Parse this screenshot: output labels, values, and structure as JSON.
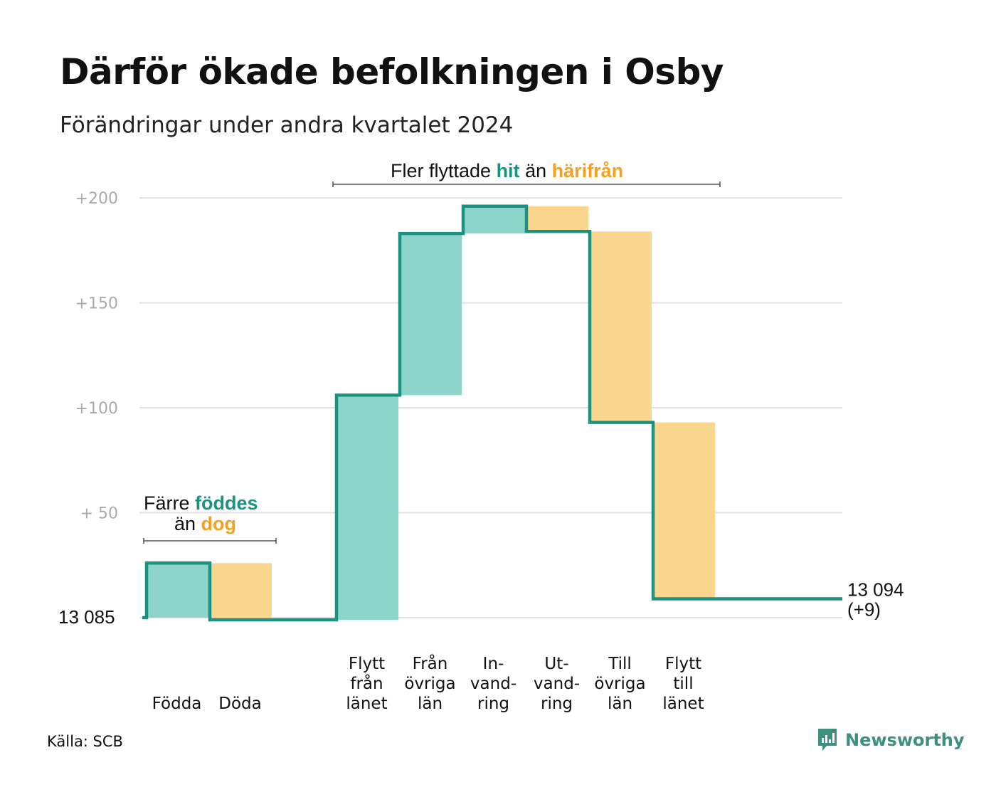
{
  "title": "Därför ökade befolkningen i Osby",
  "subtitle": "Förändringar under andra kvartalet 2024",
  "source": "Källa: SCB",
  "brand": {
    "name": "Newsworthy",
    "icon": "newsworthy-logo-icon"
  },
  "colors": {
    "inflow": "#8dd4cb",
    "outflow": "#fbd68f",
    "line": "#1a9282",
    "accent_teal": "#1a9282",
    "accent_orange": "#f5a020",
    "grid": "#e2e2e2"
  },
  "annotations": {
    "births": {
      "line1_a": "Färre ",
      "line1_b": "föddes",
      "line2_a": "än ",
      "line2_b": "dog"
    },
    "moves": {
      "part_a": "Fler flyttade ",
      "part_b": "hit",
      "part_c": " än ",
      "part_d": "härifrån"
    }
  },
  "chart_data": {
    "type": "waterfall",
    "start_value": 13085,
    "start_label": "13  085",
    "end_label_line1": "13 094",
    "end_label_line2": "(+9)",
    "ylim": [
      0,
      200
    ],
    "yticks": [
      {
        "value": 50,
        "label": "+  50"
      },
      {
        "value": 100,
        "label": "+100"
      },
      {
        "value": 150,
        "label": "+150"
      },
      {
        "value": 200,
        "label": "+200"
      }
    ],
    "steps": [
      {
        "name": "födda",
        "label_lines": [
          "",
          "",
          "Födda"
        ],
        "from": 0,
        "to": 26,
        "kind": "in"
      },
      {
        "name": "döda",
        "label_lines": [
          "",
          "",
          "Döda"
        ],
        "from": 26,
        "to": -1,
        "kind": "out"
      },
      {
        "name": "gap",
        "label_lines": [
          "",
          "",
          ""
        ],
        "from": -1,
        "to": -1,
        "kind": "gap"
      },
      {
        "name": "flytt-fran-lanet",
        "label_lines": [
          "Flytt",
          "från",
          "länet"
        ],
        "from": -1,
        "to": 106,
        "kind": "in"
      },
      {
        "name": "fran-ovriga-lan",
        "label_lines": [
          "Från",
          "övriga",
          "län"
        ],
        "from": 106,
        "to": 183,
        "kind": "in"
      },
      {
        "name": "invandring",
        "label_lines": [
          "In-",
          "vand-",
          "ring"
        ],
        "from": 183,
        "to": 196,
        "kind": "in"
      },
      {
        "name": "utvandring",
        "label_lines": [
          "Ut-",
          "vand-",
          "ring"
        ],
        "from": 196,
        "to": 184,
        "kind": "out"
      },
      {
        "name": "till-ovriga-lan",
        "label_lines": [
          "Till",
          "övriga",
          "län"
        ],
        "from": 184,
        "to": 93,
        "kind": "out"
      },
      {
        "name": "flytt-till-lanet",
        "label_lines": [
          "Flytt",
          "till",
          "länet"
        ],
        "from": 93,
        "to": 9,
        "kind": "out"
      }
    ],
    "end_value": 9
  }
}
